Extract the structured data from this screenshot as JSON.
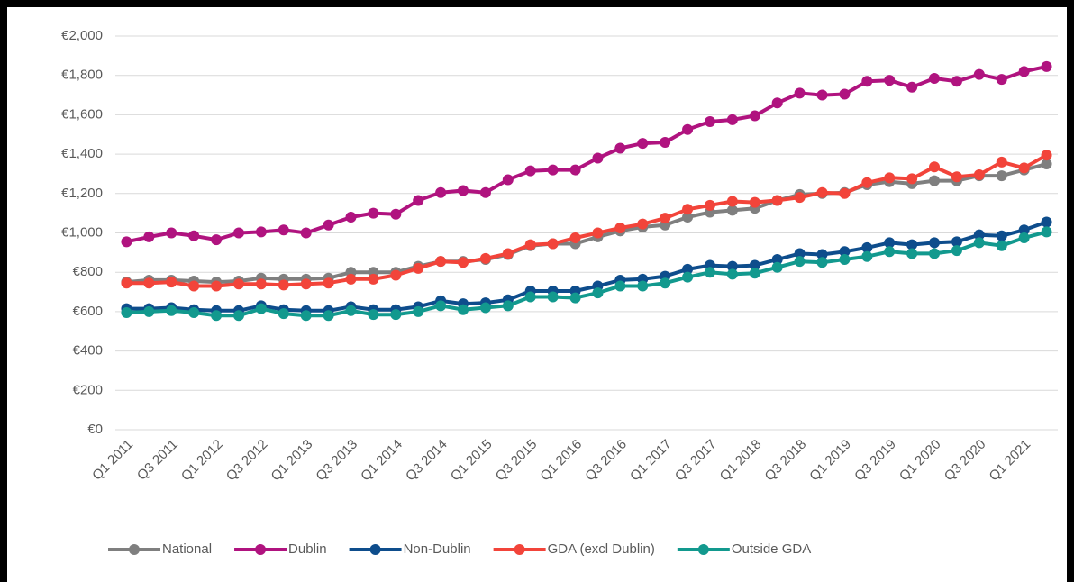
{
  "chart_data": {
    "type": "line",
    "categories": [
      "Q1 2011",
      null,
      "Q3 2011",
      null,
      "Q1 2012",
      null,
      "Q3 2012",
      null,
      "Q1 2013",
      null,
      "Q3 2013",
      null,
      "Q1 2014",
      null,
      "Q3 2014",
      null,
      "Q1 2015",
      null,
      "Q3 2015",
      null,
      "Q1 2016",
      null,
      "Q3 2016",
      null,
      "Q1 2017",
      null,
      "Q3 2017",
      null,
      "Q1 2018",
      null,
      "Q3 2018",
      null,
      "Q1 2019",
      null,
      "Q3 2019",
      null,
      "Q1 2020",
      null,
      "Q3 2020",
      null,
      "Q1 2021",
      null
    ],
    "series": [
      {
        "name": "National",
        "color": "#7f7f7f",
        "values": [
          750,
          760,
          760,
          755,
          750,
          755,
          770,
          765,
          765,
          770,
          800,
          800,
          800,
          830,
          855,
          855,
          865,
          890,
          935,
          945,
          945,
          980,
          1010,
          1030,
          1040,
          1080,
          1105,
          1115,
          1125,
          1165,
          1195,
          1200,
          1205,
          1245,
          1260,
          1250,
          1265,
          1265,
          1290,
          1290,
          1320,
          1350
        ]
      },
      {
        "name": "Dublin",
        "color": "#b0137f",
        "values": [
          955,
          980,
          1000,
          985,
          965,
          1000,
          1005,
          1015,
          1000,
          1040,
          1080,
          1100,
          1095,
          1165,
          1205,
          1215,
          1205,
          1270,
          1315,
          1320,
          1320,
          1380,
          1430,
          1455,
          1460,
          1525,
          1565,
          1575,
          1595,
          1660,
          1710,
          1700,
          1705,
          1770,
          1775,
          1740,
          1785,
          1770,
          1805,
          1780,
          1820,
          1845
        ]
      },
      {
        "name": "Non-Dublin",
        "color": "#0e4d8c",
        "values": [
          615,
          615,
          620,
          610,
          605,
          605,
          630,
          610,
          605,
          605,
          625,
          610,
          610,
          625,
          655,
          640,
          645,
          660,
          705,
          705,
          705,
          730,
          760,
          765,
          780,
          815,
          835,
          830,
          835,
          865,
          895,
          890,
          905,
          925,
          950,
          940,
          950,
          955,
          990,
          985,
          1015,
          1055
        ]
      },
      {
        "name": "GDA (excl Dublin)",
        "color": "#f2443a",
        "values": [
          745,
          745,
          750,
          730,
          730,
          740,
          740,
          735,
          740,
          745,
          765,
          765,
          785,
          820,
          855,
          850,
          870,
          895,
          940,
          945,
          975,
          1000,
          1025,
          1045,
          1075,
          1120,
          1140,
          1160,
          1155,
          1165,
          1180,
          1205,
          1200,
          1255,
          1280,
          1275,
          1335,
          1285,
          1295,
          1360,
          1330,
          1395
        ]
      },
      {
        "name": "Outside GDA",
        "color": "#12998e",
        "values": [
          595,
          600,
          605,
          595,
          580,
          580,
          615,
          590,
          580,
          580,
          605,
          585,
          585,
          600,
          630,
          610,
          620,
          630,
          675,
          675,
          670,
          695,
          730,
          730,
          745,
          775,
          800,
          790,
          795,
          825,
          855,
          850,
          865,
          880,
          905,
          895,
          895,
          910,
          950,
          935,
          975,
          1005
        ]
      }
    ],
    "ylim": [
      0,
      2000
    ],
    "yticks": [
      {
        "value": 0,
        "label": "€0"
      },
      {
        "value": 200,
        "label": "€200"
      },
      {
        "value": 400,
        "label": "€400"
      },
      {
        "value": 600,
        "label": "€600"
      },
      {
        "value": 800,
        "label": "€800"
      },
      {
        "value": 1000,
        "label": "€1,000"
      },
      {
        "value": 1200,
        "label": "€1,200"
      },
      {
        "value": 1400,
        "label": "€1,400"
      },
      {
        "value": 1600,
        "label": "€1,600"
      },
      {
        "value": 1800,
        "label": "€1,800"
      },
      {
        "value": 2000,
        "label": "€2,000"
      }
    ],
    "grid": true,
    "legend": "bottom"
  }
}
